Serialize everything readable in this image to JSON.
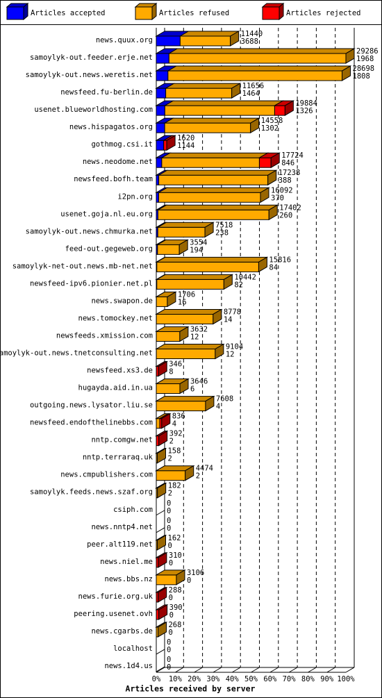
{
  "chart_data": {
    "type": "bar3d-stacked-horizontal",
    "x_label": "Articles received by server",
    "categories": [
      "news.quux.org",
      "samoylyk-out.feeder.erje.net",
      "samoylyk-out.news.weretis.net",
      "newsfeed.fu-berlin.de",
      "usenet.blueworldhosting.com",
      "news.hispagatos.org",
      "gothmog.csi.it",
      "news.neodome.net",
      "newsfeed.bofh.team",
      "i2pn.org",
      "usenet.goja.nl.eu.org",
      "samoylyk-out.news.chmurka.net",
      "feed-out.gegeweb.org",
      "samoylyk-net-out.news.mb-net.net",
      "newsfeed-ipv6.pionier.net.pl",
      "news.swapon.de",
      "news.tomockey.net",
      "newsfeeds.xmission.com",
      "samoylyk-out.news.tnetconsulting.net",
      "newsfeed.xs3.de",
      "hugayda.aid.in.ua",
      "outgoing.news.lysator.liu.se",
      "newsfeed.endofthelinebbs.com",
      "nntp.comgw.net",
      "nntp.terraraq.uk",
      "news.cmpublishers.com",
      "samoylyk.feeds.news.szaf.org",
      "csiph.com",
      "news.nntp4.net",
      "peer.alt119.net",
      "news.niel.me",
      "news.bbs.nz",
      "news.furie.org.uk",
      "peering.usenet.ovh",
      "news.cgarbs.de",
      "localhost",
      "news.1d4.us"
    ],
    "totals": [
      11440,
      29286,
      28698,
      11656,
      19884,
      14558,
      1620,
      17724,
      17238,
      16092,
      17402,
      7518,
      3554,
      15816,
      10442,
      1706,
      8778,
      3632,
      9104,
      346,
      3646,
      7608,
      836,
      392,
      158,
      4474,
      182,
      0,
      0,
      162,
      310,
      3106,
      288,
      390,
      268,
      0,
      0
    ],
    "series": [
      {
        "name": "Articles accepted",
        "color": "#0000ff",
        "values": [
          3688,
          1968,
          1808,
          1464,
          1326,
          1302,
          1144,
          846,
          388,
          370,
          260,
          238,
          194,
          84,
          82,
          16,
          14,
          12,
          12,
          8,
          6,
          4,
          4,
          2,
          2,
          2,
          2,
          0,
          0,
          0,
          0,
          0,
          0,
          0,
          0,
          0,
          0
        ]
      },
      {
        "name": "Articles refused",
        "color": "#ffaa00",
        "values": [
          7752,
          27318,
          26890,
          10192,
          16958,
          13256,
          0,
          15078,
          16850,
          15722,
          17142,
          7280,
          3360,
          15732,
          10360,
          1690,
          8764,
          3620,
          9092,
          0,
          3640,
          7604,
          532,
          0,
          156,
          4472,
          180,
          0,
          0,
          162,
          0,
          3106,
          0,
          0,
          268,
          0,
          0
        ]
      },
      {
        "name": "Articles rejected",
        "color": "#ff0000",
        "values": [
          0,
          0,
          0,
          0,
          1600,
          0,
          476,
          1800,
          0,
          0,
          0,
          0,
          0,
          0,
          0,
          0,
          0,
          0,
          0,
          338,
          0,
          0,
          300,
          390,
          0,
          0,
          0,
          0,
          0,
          0,
          310,
          0,
          288,
          390,
          0,
          0,
          0
        ]
      }
    ],
    "xlim": [
      0,
      29286
    ],
    "xticks": [
      {
        "value": 0,
        "label": "0%"
      },
      {
        "value": 2928.6,
        "label": "10%"
      },
      {
        "value": 5857.2,
        "label": "20%"
      },
      {
        "value": 8785.8,
        "label": "30%"
      },
      {
        "value": 11714.4,
        "label": "40%"
      },
      {
        "value": 14643,
        "label": "50%"
      },
      {
        "value": 17571.6,
        "label": "60%"
      },
      {
        "value": 20500.2,
        "label": "70%"
      },
      {
        "value": 23428.8,
        "label": "80%"
      },
      {
        "value": 26357.4,
        "label": "90%"
      },
      {
        "value": 29286,
        "label": "100%"
      }
    ],
    "grid": true
  }
}
